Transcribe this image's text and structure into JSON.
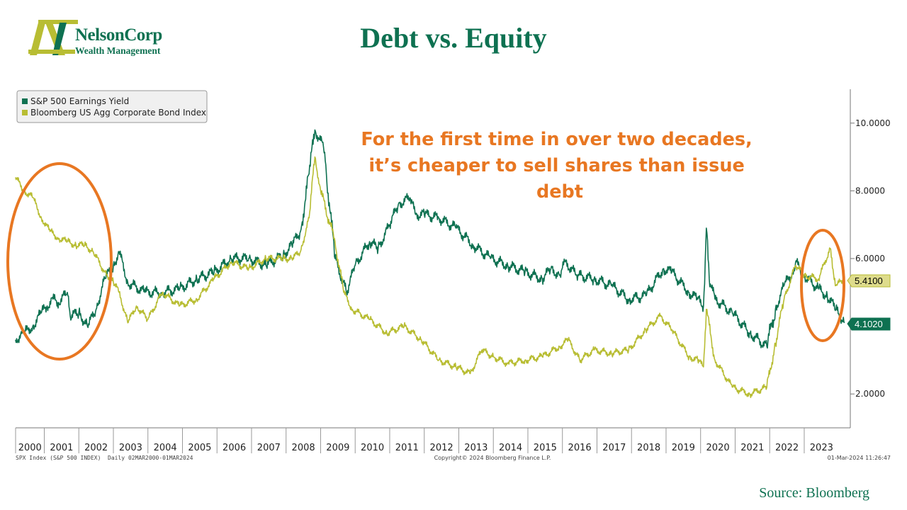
{
  "page": {
    "title": "Debt vs. Equity",
    "source": "Source: Bloomberg"
  },
  "logo": {
    "name": "NelsonCorp",
    "subtitle": "Wealth Management",
    "color_primary": "#0e7151",
    "color_accent": "#b8bd33"
  },
  "chart_data": {
    "type": "line",
    "title": "",
    "xlabel": "",
    "ylabel": "",
    "x_range": [
      "2000-03-02",
      "2024-03-01"
    ],
    "ylim": [
      1.0,
      11.0
    ],
    "yticks": [
      2,
      4,
      6,
      8,
      10
    ],
    "ytick_labels": [
      "2.0000",
      "",
      "6.0000",
      "8.0000",
      "10.0000"
    ],
    "xtick_labels": [
      "2000",
      "2001",
      "2002",
      "2003",
      "2004",
      "2005",
      "2006",
      "2007",
      "2008",
      "2009",
      "2010",
      "2011",
      "2012",
      "2013",
      "2014",
      "2015",
      "2016",
      "2017",
      "2018",
      "2019",
      "2020",
      "2021",
      "2022",
      "2023"
    ],
    "grid": false,
    "legend_position": "top-left",
    "annotation": "For the first time in over two decades, it’s cheaper to sell shares than issue debt",
    "annotation_color": "#e87722",
    "footer_left": "SPX Index (S&P 500 INDEX)  Daily 02MAR2000-01MAR2024",
    "footer_center": "Copyright© 2024 Bloomberg Finance L.P.",
    "footer_right": "01-Mar-2024 11:26:47",
    "series": [
      {
        "name": "S&P 500 Earnings Yield",
        "color": "#0e7151",
        "last_value": "4.1020",
        "x": [
          "2000-03",
          "2000-06",
          "2000-09",
          "2000-12",
          "2001-02",
          "2001-04",
          "2001-06",
          "2001-09",
          "2001-10",
          "2002-01",
          "2002-04",
          "2002-07",
          "2002-10",
          "2003-01",
          "2003-03",
          "2003-06",
          "2003-12",
          "2004-06",
          "2004-12",
          "2005-06",
          "2005-12",
          "2006-06",
          "2006-12",
          "2007-06",
          "2007-12",
          "2008-03",
          "2008-06",
          "2008-09",
          "2008-11",
          "2009-02",
          "2009-03",
          "2009-06",
          "2009-10",
          "2010-01",
          "2010-06",
          "2010-09",
          "2011-01",
          "2011-04",
          "2011-08",
          "2011-10",
          "2012-01",
          "2012-06",
          "2012-12",
          "2013-06",
          "2013-12",
          "2014-06",
          "2014-12",
          "2015-06",
          "2015-09",
          "2015-12",
          "2016-02",
          "2016-06",
          "2016-12",
          "2017-06",
          "2017-12",
          "2018-06",
          "2018-12",
          "2019-03",
          "2019-09",
          "2019-12",
          "2020-02",
          "2020-03",
          "2020-04",
          "2020-06",
          "2020-12",
          "2021-06",
          "2021-12",
          "2022-03",
          "2022-06",
          "2022-09",
          "2022-10",
          "2023-01",
          "2023-06",
          "2023-09",
          "2023-12",
          "2024-03"
        ],
        "values": [
          3.6,
          3.8,
          4.0,
          4.4,
          4.6,
          4.8,
          4.7,
          5.0,
          4.3,
          4.4,
          4.0,
          4.5,
          5.4,
          5.8,
          6.2,
          5.3,
          5.0,
          5.0,
          5.1,
          5.4,
          5.6,
          6.0,
          6.0,
          5.8,
          6.1,
          6.4,
          6.8,
          8.5,
          9.8,
          9.3,
          8.5,
          6.0,
          5.0,
          5.8,
          6.5,
          6.3,
          7.0,
          7.6,
          7.8,
          7.3,
          7.3,
          7.2,
          6.9,
          6.4,
          6.0,
          5.8,
          5.6,
          5.4,
          5.7,
          5.5,
          5.9,
          5.5,
          5.4,
          5.2,
          4.8,
          4.9,
          5.7,
          5.6,
          5.0,
          4.8,
          4.6,
          6.9,
          5.4,
          4.8,
          4.4,
          3.8,
          3.4,
          4.5,
          5.2,
          5.6,
          5.9,
          5.5,
          5.1,
          4.9,
          4.5,
          4.1
        ]
      },
      {
        "name": "Bloomberg US Agg Corporate Bond Index",
        "color": "#b8bd33",
        "last_value": "5.4100",
        "x": [
          "2000-03",
          "2000-06",
          "2000-09",
          "2000-12",
          "2001-03",
          "2001-06",
          "2001-09",
          "2001-12",
          "2002-03",
          "2002-06",
          "2002-10",
          "2003-01",
          "2003-03",
          "2003-06",
          "2003-09",
          "2004-01",
          "2004-06",
          "2004-12",
          "2005-06",
          "2005-12",
          "2006-06",
          "2006-12",
          "2007-06",
          "2007-12",
          "2008-03",
          "2008-06",
          "2008-09",
          "2008-11",
          "2009-01",
          "2009-06",
          "2009-09",
          "2009-12",
          "2010-06",
          "2010-12",
          "2011-06",
          "2011-12",
          "2012-06",
          "2012-12",
          "2013-05",
          "2013-09",
          "2014-01",
          "2014-06",
          "2014-12",
          "2015-06",
          "2015-12",
          "2016-03",
          "2016-07",
          "2016-12",
          "2017-06",
          "2017-12",
          "2018-06",
          "2018-11",
          "2019-03",
          "2019-09",
          "2019-12",
          "2020-02",
          "2020-03",
          "2020-06",
          "2020-12",
          "2021-06",
          "2021-12",
          "2022-03",
          "2022-06",
          "2022-10",
          "2023-01",
          "2023-06",
          "2023-10",
          "2023-12",
          "2024-03"
        ],
        "values": [
          8.4,
          8.0,
          7.8,
          7.2,
          6.8,
          6.6,
          6.5,
          6.4,
          6.4,
          6.2,
          5.6,
          5.3,
          5.0,
          4.1,
          4.6,
          4.2,
          5.0,
          4.6,
          4.8,
          5.4,
          5.9,
          5.7,
          6.0,
          6.0,
          6.0,
          6.2,
          7.2,
          9.0,
          8.0,
          6.5,
          5.0,
          4.5,
          4.2,
          3.8,
          4.0,
          3.6,
          3.0,
          2.8,
          2.6,
          3.3,
          3.1,
          2.9,
          3.0,
          3.1,
          3.4,
          3.6,
          3.0,
          3.3,
          3.2,
          3.3,
          3.9,
          4.3,
          3.9,
          3.1,
          3.0,
          2.8,
          4.5,
          3.0,
          2.2,
          2.0,
          2.2,
          3.5,
          4.8,
          5.8,
          5.5,
          5.4,
          6.3,
          5.2,
          5.4
        ]
      }
    ]
  }
}
